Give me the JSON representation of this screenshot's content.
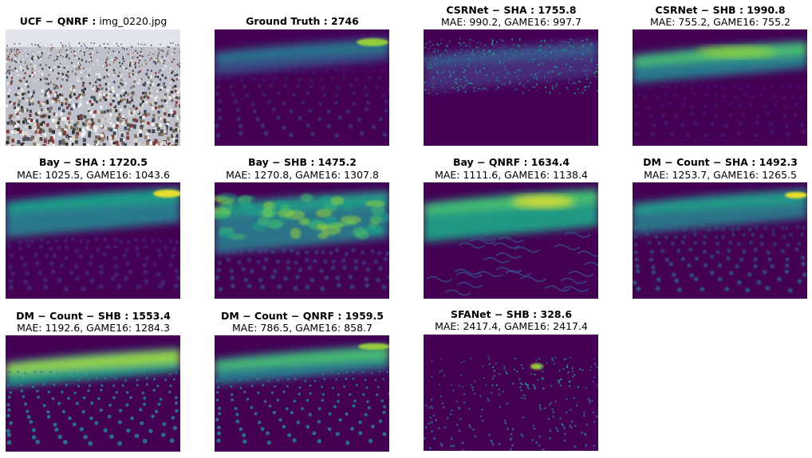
{
  "figure": {
    "panels": [
      {
        "id": "photo",
        "name_bold": "UCF − QNRF :",
        "name_rest": " img_0220.jpg",
        "metrics": "",
        "kind": "photo"
      },
      {
        "id": "gt",
        "name_bold": "Ground Truth : 2746",
        "name_rest": "",
        "metrics": "",
        "kind": "gt"
      },
      {
        "id": "csrnet-sha",
        "name_bold": "CSRNet − SHA : 1755.8",
        "name_rest": "",
        "metrics": "MAE: 990.2, GAME16: 997.7",
        "kind": "noisy"
      },
      {
        "id": "csrnet-shb",
        "name_bold": "CSRNet − SHB : 1990.8",
        "name_rest": "",
        "metrics": "MAE: 755.2, GAME16: 755.2",
        "kind": "band"
      },
      {
        "id": "bay-sha",
        "name_bold": "Bay − SHA : 1720.5",
        "name_rest": "",
        "metrics": "MAE: 1025.5, GAME16: 1043.6",
        "kind": "smooth"
      },
      {
        "id": "bay-shb",
        "name_bold": "Bay − SHB : 1475.2",
        "name_rest": "",
        "metrics": "MAE: 1270.8, GAME16: 1307.8",
        "kind": "blotch"
      },
      {
        "id": "bay-qnrf",
        "name_bold": "Bay − QNRF : 1634.4",
        "name_rest": "",
        "metrics": "MAE: 1111.6, GAME16: 1138.4",
        "kind": "wave"
      },
      {
        "id": "dm-sha",
        "name_bold": "DM − Count − SHA : 1492.3",
        "name_rest": "",
        "metrics": "MAE: 1253.7, GAME16: 1265.5",
        "kind": "dotsoft"
      },
      {
        "id": "dm-shb",
        "name_bold": "DM − Count − SHB : 1553.4",
        "name_rest": "",
        "metrics": "MAE: 1192.6, GAME16: 1284.3",
        "kind": "dots"
      },
      {
        "id": "dm-qnrf",
        "name_bold": "DM − Count − QNRF : 1959.5",
        "name_rest": "",
        "metrics": "MAE: 786.5, GAME16: 858.7",
        "kind": "dots2"
      },
      {
        "id": "sfanet-shb",
        "name_bold": "SFANet − SHB : 328.6",
        "name_rest": "",
        "metrics": "MAE: 2417.4, GAME16: 2417.4",
        "kind": "sparse"
      }
    ]
  }
}
